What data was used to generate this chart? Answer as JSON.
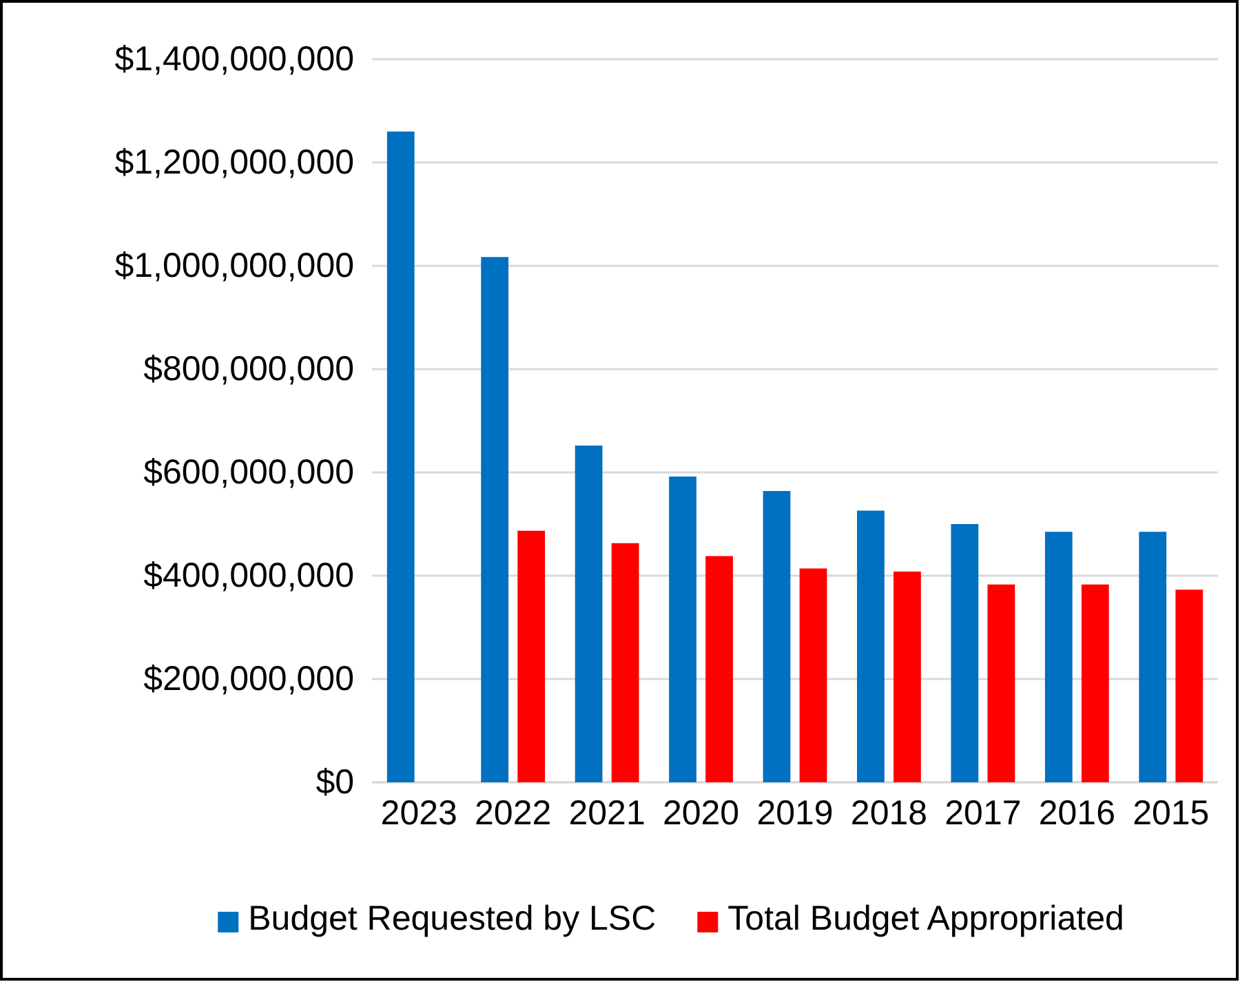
{
  "chart_data": {
    "type": "bar",
    "categories": [
      "2023",
      "2022",
      "2021",
      "2020",
      "2019",
      "2018",
      "2017",
      "2016",
      "2015"
    ],
    "series": [
      {
        "name": "Budget Requested by LSC",
        "color": "#0070c0",
        "values": [
          1260000000,
          1017000000,
          652000000,
          592000000,
          564000000,
          526000000,
          500000000,
          485000000,
          485000000
        ]
      },
      {
        "name": "Total Budget Appropriated",
        "color": "#ff0000",
        "values": [
          null,
          487000000,
          463000000,
          438000000,
          414000000,
          408000000,
          383000000,
          383000000,
          373000000
        ]
      }
    ],
    "ylim": [
      0,
      1400000000
    ],
    "yticks": [
      {
        "value": 0,
        "label": "$0"
      },
      {
        "value": 200000000,
        "label": "$200,000,000"
      },
      {
        "value": 400000000,
        "label": "$400,000,000"
      },
      {
        "value": 600000000,
        "label": "$600,000,000"
      },
      {
        "value": 800000000,
        "label": "$800,000,000"
      },
      {
        "value": 1000000000,
        "label": "$1,000,000,000"
      },
      {
        "value": 1200000000,
        "label": "$1,200,000,000"
      },
      {
        "value": 1400000000,
        "label": "$1,400,000,000"
      }
    ],
    "grid": "y",
    "legend": "bottom"
  }
}
